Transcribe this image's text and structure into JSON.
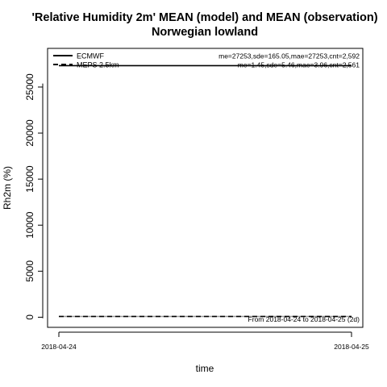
{
  "chart_data": {
    "type": "line",
    "title_line1": "'Relative Humidity 2m' MEAN (model) and MEAN (observation)",
    "title_line2": "Norwegian lowland",
    "xlabel": "time",
    "ylabel": "Rh2m (%)",
    "x_tick_labels": [
      "2018-04-24",
      "2018-04-25"
    ],
    "x_range": [
      "2018-04-24",
      "2018-04-25"
    ],
    "ylim": [
      -1100,
      29200
    ],
    "y_ticks": [
      0,
      5000,
      10000,
      15000,
      20000,
      25000
    ],
    "y_tick_labels": [
      "0",
      "5000",
      "10000",
      "15000",
      "20000",
      "25000"
    ],
    "grid": false,
    "legend_position": "top-left",
    "annotation": "From 2018-04-24 to 2018-04-25 (2d)",
    "series": [
      {
        "name": "ECMWF",
        "role": "model",
        "line_style": "solid",
        "color": "#000000",
        "stats": "me=27253,sde=165.05,mae=27253,cnt=2,592",
        "x": [
          "2018-04-24",
          "2018-04-25"
        ],
        "values": [
          27330,
          27330
        ]
      },
      {
        "name": "MEPS 2.5km",
        "role": "model",
        "line_style": "dashed",
        "color": "#000000",
        "stats": "me=1.45,sde=5.46,mae=3.96,cnt=2,561",
        "x": [
          "2018-04-24",
          "2018-04-25"
        ],
        "values": [
          80,
          80
        ]
      },
      {
        "role": "observation",
        "line_style": "solid",
        "color": "#9a9a9a",
        "x": [
          "2018-04-24",
          "2018-04-25"
        ],
        "values": [
          80,
          80
        ]
      },
      {
        "role": "observation",
        "line_style": "dashed",
        "color": "#9a9a9a",
        "x": [
          "2018-04-24",
          "2018-04-25"
        ],
        "values": [
          80,
          80
        ]
      }
    ]
  }
}
